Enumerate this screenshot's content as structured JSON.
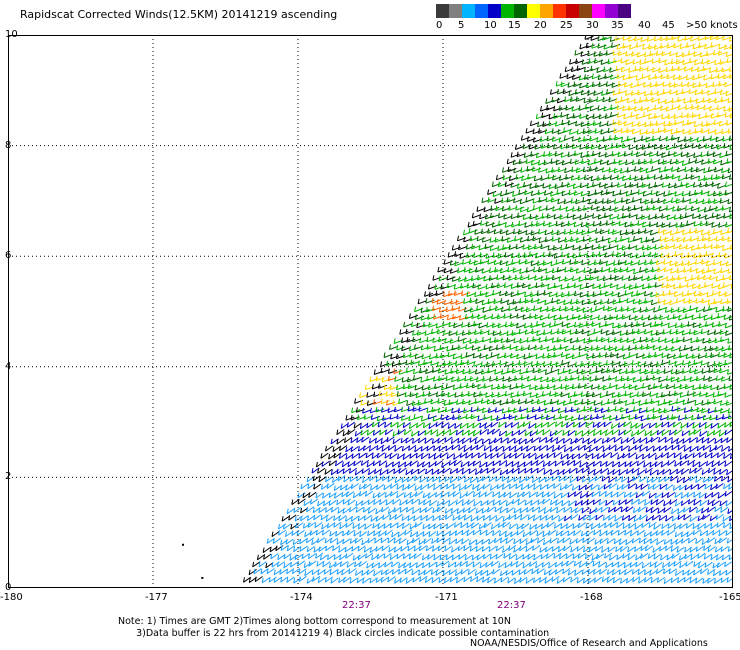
{
  "title": "Rapidscat Corrected Winds(12.5KM) 20141219 ascending",
  "legend": {
    "colors": [
      "#3a3a3a",
      "#808080",
      "#00b4ff",
      "#0064ff",
      "#0000c8",
      "#00b400",
      "#006400",
      "#ffff00",
      "#ffa500",
      "#ff3200",
      "#c80000",
      "#8b4513",
      "#ff00ff",
      "#9400d3",
      "#4b0082"
    ],
    "labels": [
      "0",
      "5",
      "10",
      "15",
      "20",
      "25",
      "30",
      "35",
      "40",
      "45",
      ">50 knots"
    ]
  },
  "map": {
    "lon_range": [
      -180,
      -165
    ],
    "lat_range": [
      0,
      10
    ],
    "x_ticks": [
      "-180",
      "-177",
      "-174",
      "-171",
      "-168",
      "-165"
    ],
    "y_ticks": [
      "0",
      "2",
      "4",
      "6",
      "8",
      "10"
    ],
    "swath_color_zones": [
      {
        "zone": "light blue",
        "color": "#1ea0ff"
      },
      {
        "zone": "blue",
        "color": "#0000c8"
      },
      {
        "zone": "light green",
        "color": "#00b400"
      },
      {
        "zone": "dark green",
        "color": "#006400"
      },
      {
        "zone": "yellow",
        "color": "#ffd700"
      },
      {
        "zone": "orange",
        "color": "#ff6400"
      },
      {
        "zone": "black",
        "color": "#000000"
      }
    ]
  },
  "times": [
    "22:37",
    "22:37"
  ],
  "notes": {
    "line1": "Note: 1) Times are GMT 2)Times along bottom correspond to measurement at 10N",
    "line2": "      3)Data buffer is 22 hrs from 20141219 4) Black circles indicate possible contamination"
  },
  "credit": "NOAA/NESDIS/Office of Research and Applications"
}
